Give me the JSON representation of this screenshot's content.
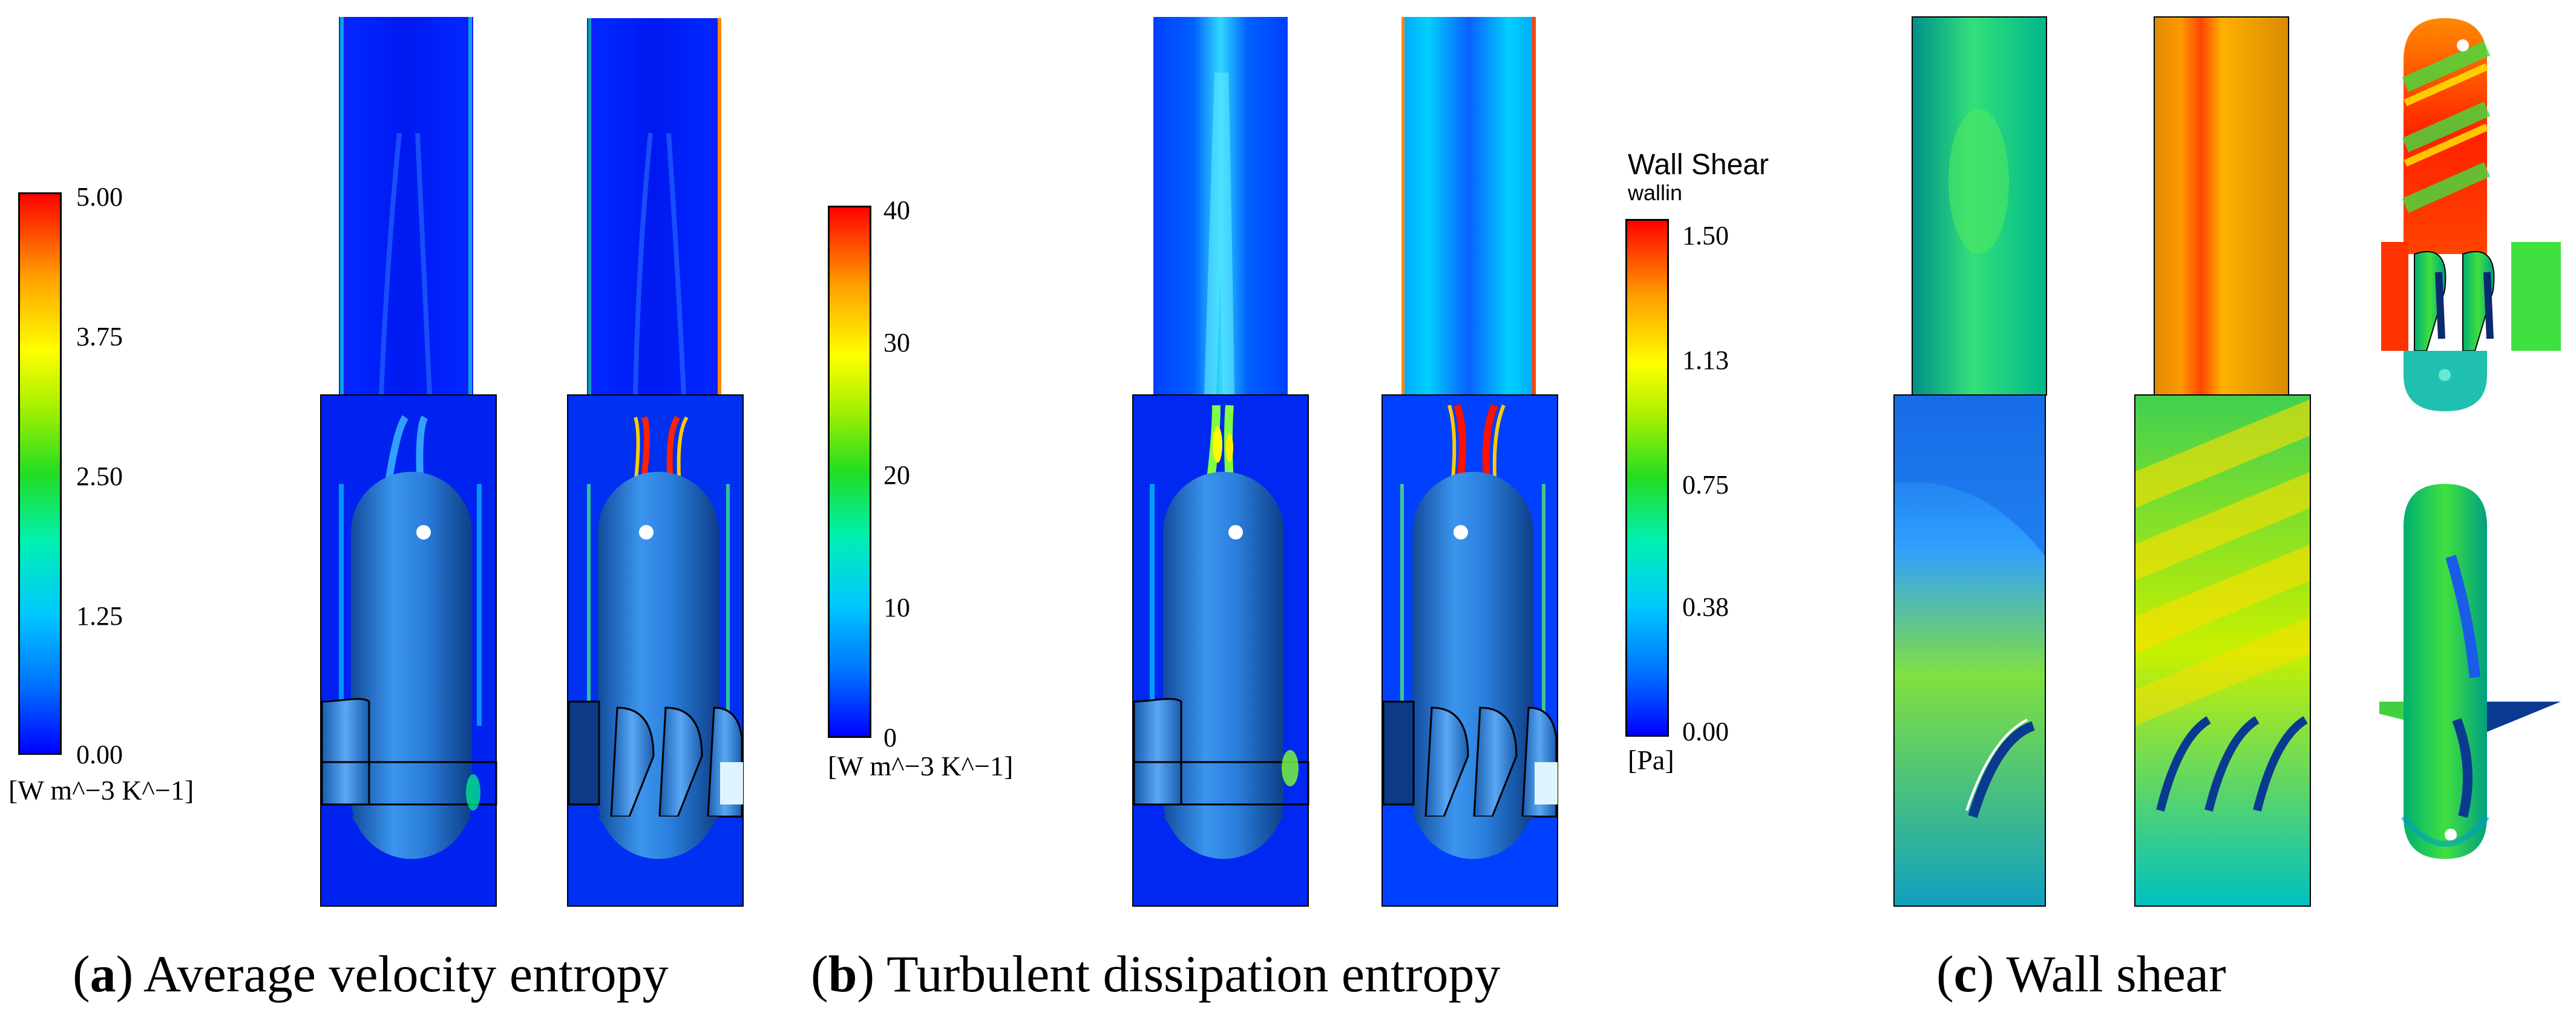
{
  "colormap": {
    "stops": [
      "#0000ff",
      "#0070ff",
      "#00c8ff",
      "#00ffb0",
      "#33dd33",
      "#b8f000",
      "#ffff00",
      "#ffaa00",
      "#ff3300",
      "#ff0000"
    ]
  },
  "colorbars": {
    "a": {
      "ticks": [
        "5.00",
        "3.75",
        "2.50",
        "1.25",
        "0.00"
      ],
      "unit": "[W m^−3 K^−1]"
    },
    "b": {
      "ticks": [
        "40",
        "30",
        "20",
        "10",
        "0"
      ],
      "unit": "[W m^−3 K^−1]"
    },
    "c": {
      "title": "Wall Shear",
      "subtitle": "wallin",
      "ticks": [
        "1.50",
        "1.13",
        "0.75",
        "0.38",
        "0.00"
      ],
      "unit": "[Pa]"
    }
  },
  "captions": {
    "a": {
      "letter": "a",
      "text": " Average velocity entropy"
    },
    "b": {
      "letter": "b",
      "text": " Turbulent dissipation entropy"
    },
    "c": {
      "letter": "c",
      "text": " Wall shear"
    }
  }
}
